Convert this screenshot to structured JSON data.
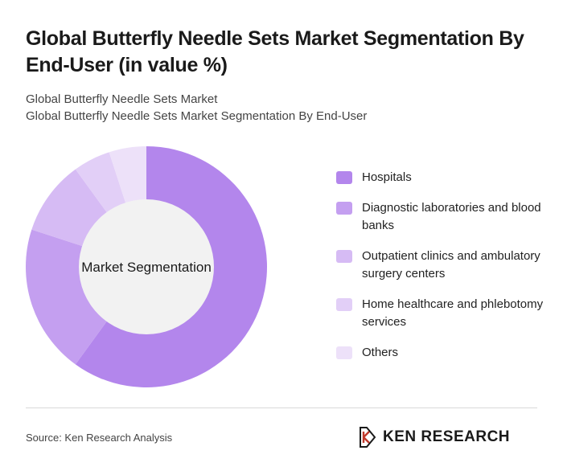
{
  "page": {
    "title": "Global Butterfly Needle Sets Market Segmentation By End-User (in value %)",
    "subtitle_line1": "Global Butterfly Needle Sets Market",
    "subtitle_line2": "Global Butterfly Needle Sets Market Segmentation By End-User",
    "source": "Source: Ken Research Analysis",
    "logo_text": "KEN RESEARCH"
  },
  "chart_data": {
    "type": "pie",
    "center_label": "Market Segmentation",
    "categories": [
      "Hospitals",
      "Diagnostic laboratories and blood banks",
      "Outpatient clinics and ambulatory surgery centers",
      "Home healthcare and phlebotomy services",
      "Others"
    ],
    "values": [
      60,
      20,
      10,
      5,
      5
    ],
    "colors": [
      "#b386ec",
      "#c49ff0",
      "#d6bbf4",
      "#e2cff7",
      "#ede1f9"
    ],
    "legend_position": "right"
  }
}
